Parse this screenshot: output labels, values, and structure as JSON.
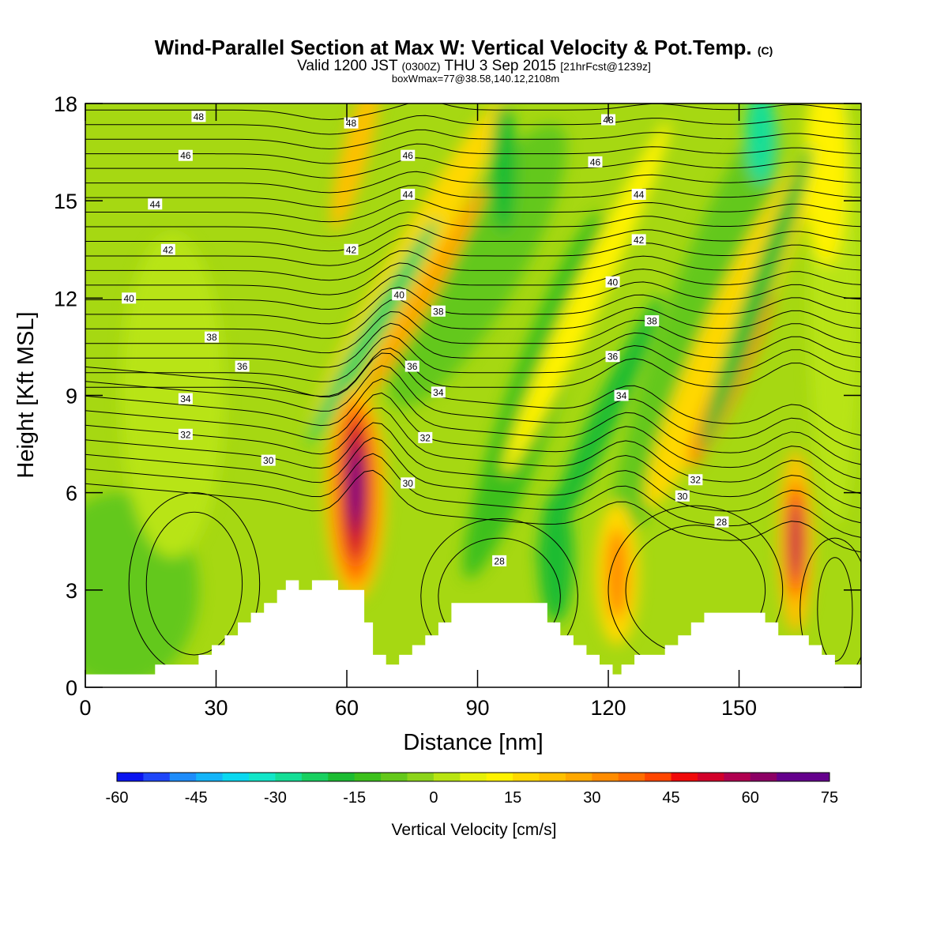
{
  "title": {
    "main": "Wind-Parallel Section at Max W: Vertical Velocity & Pot.Temp.",
    "main_unit": "(C)",
    "valid_prefix": "Valid 1200 JST",
    "valid_utc": "(0300Z)",
    "valid_date": "THU 3 Sep 2015",
    "forecast": "[21hrFcst@1239z]",
    "boxwmax": "boxWmax=77@38.58,140.12,2108m"
  },
  "colors": {
    "terrain": "#ffffff",
    "contour": "#000000",
    "background": "#a6d812"
  },
  "chart_data": {
    "type": "heatmap",
    "xlabel": "Distance [nm]",
    "ylabel": "Height [Kft MSL]",
    "xlim": [
      0,
      178
    ],
    "ylim": [
      0,
      18
    ],
    "x_ticks": [
      0,
      30,
      60,
      90,
      120,
      150
    ],
    "y_ticks": [
      0,
      3,
      6,
      9,
      12,
      15,
      18
    ],
    "x_tick_labels": [
      "0",
      "30",
      "60",
      "90",
      "120",
      "150"
    ],
    "y_tick_labels": [
      "0",
      "3",
      "6",
      "9",
      "12",
      "15",
      "18"
    ],
    "colorbar": {
      "title": "Vertical Velocity [cm/s]",
      "min": -60,
      "max": 75,
      "step": 5,
      "labels": [
        "-60",
        "-45",
        "-30",
        "-15",
        "0",
        "15",
        "30",
        "45",
        "60",
        "75"
      ],
      "colors": [
        "#0a14f0",
        "#1e46f8",
        "#1e8cfa",
        "#14b4f8",
        "#0ad8f0",
        "#12e6c8",
        "#14de96",
        "#18d060",
        "#1cbc32",
        "#3cc01c",
        "#64c81a",
        "#8cd41a",
        "#b8e412",
        "#e6f008",
        "#fff200",
        "#ffd800",
        "#ffc000",
        "#ffa800",
        "#ff8c00",
        "#ff6e00",
        "#ff4600",
        "#f00a0a",
        "#d2002a",
        "#b00050",
        "#8c0064",
        "#64008c"
      ]
    },
    "features": [
      {
        "name": "updraft-core",
        "x": 62,
        "z": 6.0,
        "w": 77
      },
      {
        "name": "updraft-band",
        "x": 163,
        "z": 4.5,
        "w": 60
      },
      {
        "name": "updraft-band",
        "x": 122,
        "z": 3.5,
        "w": 30
      },
      {
        "name": "downdraft-core",
        "x": 63,
        "z": 10.5,
        "w": -28
      },
      {
        "name": "downdraft-core",
        "x": 152,
        "z": 17.5,
        "w": -32
      }
    ],
    "terrain_kft": [
      [
        0,
        0.4
      ],
      [
        16,
        0.4
      ],
      [
        16,
        0.7
      ],
      [
        26,
        0.7
      ],
      [
        26,
        1.0
      ],
      [
        29,
        1.0
      ],
      [
        29,
        1.3
      ],
      [
        32,
        1.3
      ],
      [
        32,
        1.6
      ],
      [
        35,
        1.6
      ],
      [
        35,
        2.0
      ],
      [
        38,
        2.0
      ],
      [
        38,
        2.3
      ],
      [
        41,
        2.3
      ],
      [
        41,
        2.6
      ],
      [
        44,
        2.6
      ],
      [
        44,
        3.0
      ],
      [
        46,
        3.0
      ],
      [
        46,
        3.3
      ],
      [
        49,
        3.3
      ],
      [
        49,
        3.0
      ],
      [
        52,
        3.0
      ],
      [
        52,
        3.3
      ],
      [
        58,
        3.3
      ],
      [
        58,
        3.0
      ],
      [
        64,
        3.0
      ],
      [
        64,
        2.0
      ],
      [
        66,
        2.0
      ],
      [
        66,
        1.0
      ],
      [
        69,
        1.0
      ],
      [
        69,
        0.7
      ],
      [
        72,
        0.7
      ],
      [
        72,
        1.0
      ],
      [
        75,
        1.0
      ],
      [
        75,
        1.3
      ],
      [
        78,
        1.3
      ],
      [
        78,
        1.6
      ],
      [
        81,
        1.6
      ],
      [
        81,
        2.0
      ],
      [
        84,
        2.0
      ],
      [
        84,
        2.6
      ],
      [
        106,
        2.6
      ],
      [
        106,
        2.0
      ],
      [
        109,
        2.0
      ],
      [
        109,
        1.6
      ],
      [
        112,
        1.6
      ],
      [
        112,
        1.3
      ],
      [
        115,
        1.3
      ],
      [
        115,
        1.0
      ],
      [
        118,
        1.0
      ],
      [
        118,
        0.7
      ],
      [
        121,
        0.7
      ],
      [
        121,
        0.4
      ],
      [
        123,
        0.4
      ],
      [
        123,
        0.7
      ],
      [
        126,
        0.7
      ],
      [
        126,
        1.0
      ],
      [
        133,
        1.0
      ],
      [
        133,
        1.3
      ],
      [
        136,
        1.3
      ],
      [
        136,
        1.6
      ],
      [
        139,
        1.6
      ],
      [
        139,
        2.0
      ],
      [
        142,
        2.0
      ],
      [
        142,
        2.3
      ],
      [
        156,
        2.3
      ],
      [
        156,
        2.0
      ],
      [
        159,
        2.0
      ],
      [
        159,
        1.6
      ],
      [
        166,
        1.6
      ],
      [
        166,
        1.3
      ],
      [
        169,
        1.3
      ],
      [
        169,
        1.0
      ],
      [
        172,
        1.0
      ],
      [
        172,
        0.7
      ],
      [
        178,
        0.7
      ]
    ],
    "theta_contours": [
      {
        "value": 28,
        "label": "28",
        "label_at": [
          95,
          3.9
        ]
      },
      {
        "value": 28,
        "label": "28",
        "label_at": [
          146,
          5.1
        ]
      },
      {
        "value": 30,
        "label": "30",
        "label_at": [
          42,
          7.0
        ]
      },
      {
        "value": 30,
        "label": "30",
        "label_at": [
          74,
          6.3
        ]
      },
      {
        "value": 30,
        "label": "30",
        "label_at": [
          137,
          5.9
        ]
      },
      {
        "value": 32,
        "label": "32",
        "label_at": [
          23,
          7.8
        ]
      },
      {
        "value": 32,
        "label": "32",
        "label_at": [
          78,
          7.7
        ]
      },
      {
        "value": 32,
        "label": "32",
        "label_at": [
          140,
          6.4
        ]
      },
      {
        "value": 34,
        "label": "34",
        "label_at": [
          23,
          8.9
        ]
      },
      {
        "value": 34,
        "label": "34",
        "label_at": [
          81,
          9.1
        ]
      },
      {
        "value": 34,
        "label": "34",
        "label_at": [
          123,
          9.0
        ]
      },
      {
        "value": 36,
        "label": "36",
        "label_at": [
          36,
          9.9
        ]
      },
      {
        "value": 36,
        "label": "36",
        "label_at": [
          75,
          9.9
        ]
      },
      {
        "value": 36,
        "label": "36",
        "label_at": [
          121,
          10.2
        ]
      },
      {
        "value": 38,
        "label": "38",
        "label_at": [
          29,
          10.8
        ]
      },
      {
        "value": 38,
        "label": "38",
        "label_at": [
          81,
          11.6
        ]
      },
      {
        "value": 38,
        "label": "38",
        "label_at": [
          130,
          11.3
        ]
      },
      {
        "value": 40,
        "label": "40",
        "label_at": [
          10,
          12.0
        ]
      },
      {
        "value": 40,
        "label": "40",
        "label_at": [
          72,
          12.1
        ]
      },
      {
        "value": 40,
        "label": "40",
        "label_at": [
          121,
          12.5
        ]
      },
      {
        "value": 42,
        "label": "42",
        "label_at": [
          19,
          13.5
        ]
      },
      {
        "value": 42,
        "label": "42",
        "label_at": [
          61,
          13.5
        ]
      },
      {
        "value": 42,
        "label": "42",
        "label_at": [
          127,
          13.8
        ]
      },
      {
        "value": 44,
        "label": "44",
        "label_at": [
          16,
          14.9
        ]
      },
      {
        "value": 44,
        "label": "44",
        "label_at": [
          74,
          15.2
        ]
      },
      {
        "value": 44,
        "label": "44",
        "label_at": [
          127,
          15.2
        ]
      },
      {
        "value": 46,
        "label": "46",
        "label_at": [
          23,
          16.4
        ]
      },
      {
        "value": 46,
        "label": "46",
        "label_at": [
          74,
          16.4
        ]
      },
      {
        "value": 46,
        "label": "46",
        "label_at": [
          117,
          16.2
        ]
      },
      {
        "value": 48,
        "label": "48",
        "label_at": [
          26,
          17.6
        ]
      },
      {
        "value": 48,
        "label": "48",
        "label_at": [
          61,
          17.4
        ]
      },
      {
        "value": 48,
        "label": "48",
        "label_at": [
          120,
          17.5
        ]
      }
    ]
  }
}
